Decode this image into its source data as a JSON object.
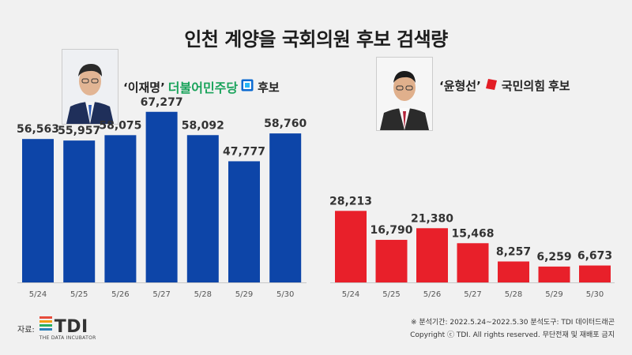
{
  "title": "인천 계양을 국회의원 후보 검색량",
  "candidates": [
    {
      "name_label": "‘이재명’",
      "party": "더불어민주당",
      "suffix": "후보",
      "party_color": "#1aa35b",
      "party_icon": "democratic-party-logo-icon",
      "photo_icon": "candidate-photo-lee"
    },
    {
      "name_label": "‘윤형선’",
      "party": "국민의힘",
      "suffix": "후보",
      "party_color": "#e31c24",
      "party_icon": "people-power-party-logo-icon",
      "photo_icon": "candidate-photo-yoon"
    }
  ],
  "chart_data": [
    {
      "type": "bar",
      "categories": [
        "5/24",
        "5/25",
        "5/26",
        "5/27",
        "5/28",
        "5/29",
        "5/30"
      ],
      "values": [
        56563,
        55957,
        58075,
        67277,
        58092,
        47777,
        58760
      ],
      "value_labels": [
        "56,563",
        "55,957",
        "58,075",
        "67,277",
        "58,092",
        "47,777",
        "58,760"
      ],
      "color": "#0d45a8",
      "ylim": [
        0,
        70000
      ]
    },
    {
      "type": "bar",
      "categories": [
        "5/24",
        "5/25",
        "5/26",
        "5/27",
        "5/28",
        "5/29",
        "5/30"
      ],
      "values": [
        28213,
        16790,
        21380,
        15468,
        8257,
        6259,
        6673
      ],
      "value_labels": [
        "28,213",
        "16,790",
        "21,380",
        "15,468",
        "8,257",
        "6,259",
        "6,673"
      ],
      "color": "#e8202a",
      "ylim": [
        0,
        70000
      ]
    }
  ],
  "footer": {
    "source_label": "자료:",
    "logo_text": "TDI",
    "logo_subtext": "THE DATA INCUBATOR",
    "logo_icon": "tdi-logo-icon",
    "period": "※ 분석기간: 2022.5.24~2022.5.30  분석도구: TDI 데이터드래곤",
    "copyright": "Copyright ⓒ TDI. All rights reserved. 무단전재 및 재배포 금지"
  }
}
